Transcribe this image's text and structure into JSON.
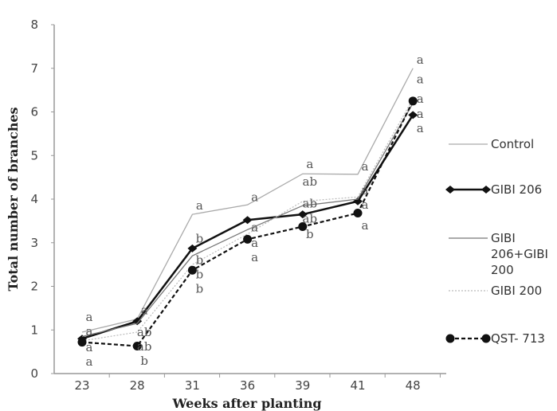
{
  "chart_data": {
    "type": "line",
    "title": "",
    "xlabel": "Weeks after planting",
    "ylabel": "Total number of branches",
    "categories": [
      "23",
      "28",
      "31",
      "36",
      "39",
      "41",
      "48"
    ],
    "ylim": [
      0,
      8
    ],
    "yticks": [
      "0",
      "1",
      "2",
      "3",
      "4",
      "5",
      "6",
      "7",
      "8"
    ],
    "grid": false,
    "legend_position": "right",
    "series": [
      {
        "name": "Control",
        "values": [
          0.95,
          1.25,
          3.65,
          3.87,
          4.58,
          4.57,
          7.0
        ],
        "color": "#aaaaaa",
        "style": "solid-thin",
        "marker": "none"
      },
      {
        "name": "GIBI 206",
        "values": [
          0.8,
          1.2,
          2.87,
          3.52,
          3.65,
          3.95,
          5.93
        ],
        "color": "#111111",
        "style": "solid-thick",
        "marker": "diamond"
      },
      {
        "name": "GIBI 206+GIBI 200",
        "values": [
          0.85,
          1.15,
          2.7,
          3.3,
          3.85,
          4.0,
          6.2
        ],
        "color": "#777777",
        "style": "solid-thin",
        "marker": "none"
      },
      {
        "name": "GIBI 200",
        "values": [
          0.75,
          0.95,
          2.5,
          3.2,
          3.95,
          4.05,
          6.3
        ],
        "color": "#bbbbbb",
        "style": "dotted",
        "marker": "none"
      },
      {
        "name": "QST- 713",
        "values": [
          0.72,
          0.63,
          2.37,
          3.08,
          3.37,
          3.68,
          6.25
        ],
        "color": "#111111",
        "style": "dashed",
        "marker": "circle"
      }
    ],
    "annotations": [
      {
        "x": "23",
        "y": 1.3,
        "text": "a"
      },
      {
        "x": "23",
        "y": 1.05,
        "text": "a"
      },
      {
        "x": "23",
        "y": 0.6,
        "text": "a"
      },
      {
        "x": "23",
        "y": 0.35,
        "text": "a"
      },
      {
        "x": "28",
        "y": 1.45,
        "text": "a"
      },
      {
        "x": "28",
        "y": 0.95,
        "text": "ab"
      },
      {
        "x": "28",
        "y": 0.8,
        "text": "ab"
      },
      {
        "x": "28",
        "y": 0.45,
        "text": "b"
      },
      {
        "x": "31",
        "y": 3.85,
        "text": "a"
      },
      {
        "x": "31",
        "y": 3.1,
        "text": "b"
      },
      {
        "x": "31",
        "y": 2.6,
        "text": "b"
      },
      {
        "x": "31",
        "y": 2.45,
        "text": "b"
      },
      {
        "x": "31",
        "y": 2.0,
        "text": "b"
      },
      {
        "x": "36",
        "y": 4.05,
        "text": "a"
      },
      {
        "x": "36",
        "y": 3.35,
        "text": "a"
      },
      {
        "x": "36",
        "y": 3.0,
        "text": "a"
      },
      {
        "x": "36",
        "y": 2.7,
        "text": "a"
      },
      {
        "x": "39",
        "y": 4.8,
        "text": "a"
      },
      {
        "x": "39",
        "y": 4.4,
        "text": "ab"
      },
      {
        "x": "39",
        "y": 3.9,
        "text": "ab"
      },
      {
        "x": "39",
        "y": 3.55,
        "text": "ab"
      },
      {
        "x": "39",
        "y": 3.2,
        "text": "b"
      },
      {
        "x": "41",
        "y": 4.75,
        "text": "a"
      },
      {
        "x": "41",
        "y": 4.2,
        "text": "a"
      },
      {
        "x": "41",
        "y": 4.05,
        "text": "a"
      },
      {
        "x": "41",
        "y": 3.4,
        "text": "a"
      },
      {
        "x": "48",
        "y": 7.2,
        "text": "a"
      },
      {
        "x": "48",
        "y": 6.75,
        "text": "a"
      },
      {
        "x": "48",
        "y": 6.3,
        "text": "a"
      },
      {
        "x": "48",
        "y": 5.95,
        "text": "a"
      },
      {
        "x": "48",
        "y": 5.7,
        "text": "a"
      }
    ]
  }
}
